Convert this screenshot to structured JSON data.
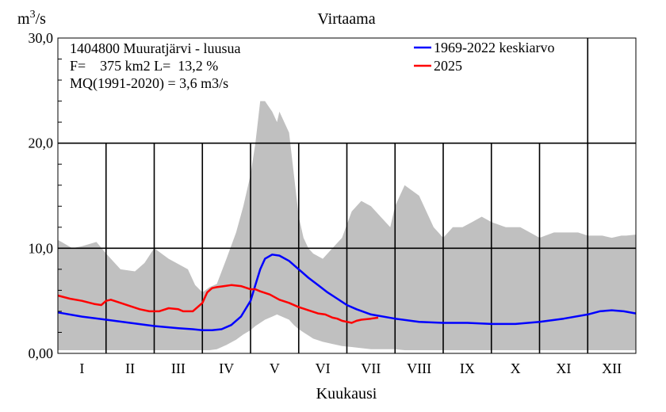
{
  "chart_data": {
    "type": "area",
    "title": "Virtaama",
    "ylabel_base": "m",
    "ylabel_sup": "3",
    "ylabel_tail": "/s",
    "xlabel": "Kuukausi",
    "ylim": [
      0,
      30
    ],
    "yticks": [
      "0,00",
      "10,0",
      "20,0",
      "30,0"
    ],
    "ytick_values": [
      0,
      10,
      20,
      30
    ],
    "xlim": [
      0,
      12
    ],
    "months": [
      "I",
      "II",
      "III",
      "IV",
      "V",
      "VI",
      "VII",
      "VIII",
      "IX",
      "X",
      "XI",
      "XII"
    ],
    "info_lines": [
      "1404800 Muuratjärvi - luusua",
      "F=    375 km2 L=  13,2 %",
      "MQ(1991-2020) = 3,6 m3/s"
    ],
    "legend": [
      {
        "name": "1969-2022 keskiarvo",
        "color": "#0000ff"
      },
      {
        "name": "2025",
        "color": "#ff0000"
      }
    ],
    "colors": {
      "range_fill": "#c0c0c0",
      "mean_line": "#0000ff",
      "year_line": "#ff0000",
      "grid": "#000000"
    },
    "range_band": {
      "x": [
        0,
        0.3,
        0.5,
        0.8,
        1.0,
        1.3,
        1.6,
        1.8,
        2.0,
        2.3,
        2.7,
        2.85,
        3.0,
        3.15,
        3.3,
        3.5,
        3.7,
        3.85,
        4.0,
        4.1,
        4.2,
        4.3,
        4.45,
        4.55,
        4.6,
        4.8,
        4.9,
        5.0,
        5.1,
        5.2,
        5.3,
        5.5,
        5.7,
        5.9,
        6.1,
        6.3,
        6.5,
        6.7,
        6.9,
        7.0,
        7.2,
        7.5,
        7.8,
        8.0,
        8.2,
        8.4,
        8.6,
        8.8,
        9.0,
        9.3,
        9.6,
        9.8,
        10.0,
        10.3,
        10.6,
        10.8,
        11.0,
        11.3,
        11.5,
        11.7,
        11.8,
        12.0
      ],
      "high": [
        10.8,
        10.0,
        10.2,
        10.6,
        9.5,
        8.0,
        7.8,
        8.6,
        10.0,
        9.0,
        8.0,
        6.5,
        5.8,
        6.3,
        6.6,
        9.0,
        11.5,
        14.0,
        17.0,
        20.0,
        24.0,
        24.0,
        23.0,
        22.0,
        23.0,
        21.0,
        17.0,
        13.0,
        11.0,
        10.0,
        9.5,
        9.0,
        10.0,
        11.0,
        13.5,
        14.5,
        14.0,
        13.0,
        12.0,
        14.0,
        16.0,
        15.0,
        12.0,
        11.0,
        12.0,
        12.0,
        12.5,
        13.0,
        12.5,
        12.0,
        12.0,
        11.5,
        11.0,
        11.5,
        11.5,
        11.5,
        11.2,
        11.2,
        11.0,
        11.2,
        11.2,
        11.3
      ],
      "low": [
        0.3,
        0.3,
        0.3,
        0.3,
        0.3,
        0.3,
        0.3,
        0.3,
        0.3,
        0.3,
        0.3,
        0.3,
        0.3,
        0.3,
        0.4,
        0.8,
        1.3,
        1.8,
        2.2,
        2.6,
        2.9,
        3.2,
        3.5,
        3.7,
        3.6,
        3.2,
        2.7,
        2.3,
        2.0,
        1.7,
        1.4,
        1.1,
        0.9,
        0.7,
        0.6,
        0.5,
        0.4,
        0.4,
        0.4,
        0.4,
        0.3,
        0.3,
        0.3,
        0.3,
        0.3,
        0.3,
        0.3,
        0.3,
        0.3,
        0.3,
        0.3,
        0.3,
        0.3,
        0.3,
        0.3,
        0.3,
        0.3,
        0.3,
        0.3,
        0.3,
        0.3,
        0.3
      ]
    },
    "series": [
      {
        "name": "1969-2022 keskiarvo",
        "color": "#0000ff",
        "x": [
          0,
          0.5,
          1.0,
          1.5,
          2.0,
          2.5,
          2.8,
          3.0,
          3.2,
          3.4,
          3.6,
          3.8,
          4.0,
          4.1,
          4.2,
          4.3,
          4.45,
          4.6,
          4.8,
          5.0,
          5.2,
          5.4,
          5.6,
          5.8,
          6.0,
          6.2,
          6.5,
          7.0,
          7.5,
          8.0,
          8.5,
          9.0,
          9.5,
          10.0,
          10.5,
          11.0,
          11.25,
          11.5,
          11.75,
          12.0
        ],
        "y": [
          3.9,
          3.5,
          3.2,
          2.9,
          2.6,
          2.4,
          2.3,
          2.2,
          2.2,
          2.3,
          2.7,
          3.5,
          5.0,
          6.5,
          8.0,
          9.0,
          9.4,
          9.3,
          8.8,
          8.0,
          7.2,
          6.5,
          5.8,
          5.2,
          4.6,
          4.2,
          3.7,
          3.3,
          3.0,
          2.9,
          2.9,
          2.8,
          2.8,
          3.0,
          3.3,
          3.7,
          4.0,
          4.1,
          4.0,
          3.8
        ]
      },
      {
        "name": "2025",
        "color": "#ff0000",
        "x": [
          0,
          0.25,
          0.5,
          0.75,
          0.9,
          1.0,
          1.1,
          1.3,
          1.5,
          1.7,
          1.9,
          2.1,
          2.3,
          2.5,
          2.6,
          2.8,
          3.0,
          3.1,
          3.2,
          3.3,
          3.45,
          3.6,
          3.8,
          4.0,
          4.1,
          4.2,
          4.4,
          4.6,
          4.8,
          5.0,
          5.2,
          5.4,
          5.55,
          5.7,
          5.8,
          5.9,
          6.0,
          6.1,
          6.2,
          6.3,
          6.5,
          6.65
        ],
        "y": [
          5.5,
          5.2,
          5.0,
          4.7,
          4.6,
          5.0,
          5.1,
          4.8,
          4.5,
          4.2,
          4.0,
          4.0,
          4.3,
          4.2,
          4.0,
          4.0,
          4.8,
          5.8,
          6.2,
          6.3,
          6.4,
          6.5,
          6.4,
          6.1,
          6.1,
          5.9,
          5.6,
          5.1,
          4.8,
          4.4,
          4.1,
          3.8,
          3.7,
          3.4,
          3.3,
          3.1,
          3.0,
          2.9,
          3.1,
          3.2,
          3.3,
          3.4
        ]
      }
    ]
  }
}
